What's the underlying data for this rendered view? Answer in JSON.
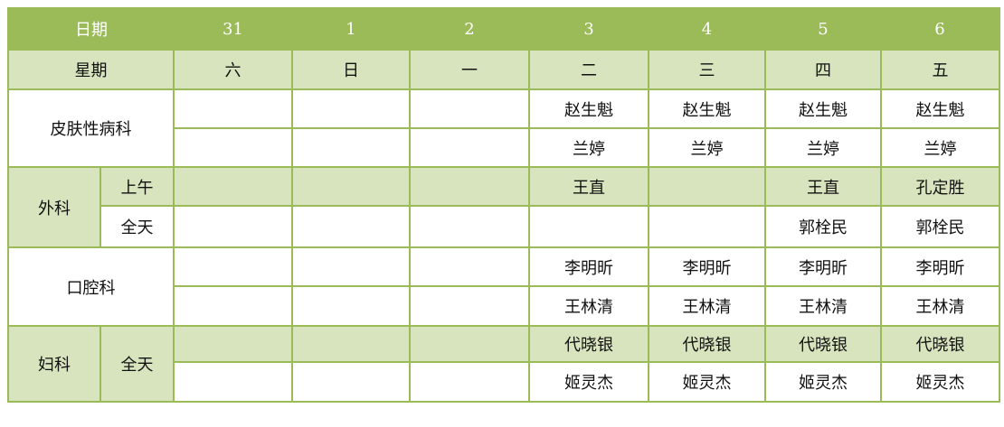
{
  "header": {
    "date_label": "日期",
    "weekday_label": "星期",
    "dates": [
      "31",
      "1",
      "2",
      "3",
      "4",
      "5",
      "6"
    ],
    "weekdays": [
      "六",
      "日",
      "一",
      "二",
      "三",
      "四",
      "五"
    ]
  },
  "departments": [
    {
      "name": "皮肤性病科",
      "rows": [
        {
          "shift": "",
          "shaded": false,
          "cells": [
            "",
            "",
            "",
            "赵生魁",
            "赵生魁",
            "赵生魁",
            "赵生魁"
          ]
        },
        {
          "shift": "",
          "shaded": false,
          "cells": [
            "",
            "",
            "",
            "兰婷",
            "兰婷",
            "兰婷",
            "兰婷"
          ]
        }
      ]
    },
    {
      "name": "外科",
      "shaded": true,
      "rows": [
        {
          "shift": "上午",
          "shaded": true,
          "cells": [
            "",
            "",
            "",
            "王直",
            "",
            "王直",
            "孔定胜"
          ]
        },
        {
          "shift": "全天",
          "shaded": false,
          "cells": [
            "",
            "",
            "",
            "",
            "",
            "郭栓民",
            "郭栓民"
          ]
        }
      ]
    },
    {
      "name": "口腔科",
      "rows": [
        {
          "shift": "",
          "shaded": false,
          "cells": [
            "",
            "",
            "",
            "李明昕",
            "李明昕",
            "李明昕",
            "李明昕"
          ]
        },
        {
          "shift": "",
          "shaded": false,
          "cells": [
            "",
            "",
            "",
            "王林清",
            "王林清",
            "王林清",
            "王林清"
          ]
        }
      ]
    },
    {
      "name": "妇科",
      "shaded": true,
      "shift_span": "全天",
      "rows": [
        {
          "shift": "全天",
          "shaded": true,
          "cells": [
            "",
            "",
            "",
            "代晓银",
            "代晓银",
            "代晓银",
            "代晓银"
          ]
        },
        {
          "shift": "",
          "shaded": false,
          "cells": [
            "",
            "",
            "",
            "姬灵杰",
            "姬灵杰",
            "姬灵杰",
            "姬灵杰"
          ]
        }
      ]
    }
  ],
  "colors": {
    "header": "#9BBB59",
    "shade": "#D7E4BD",
    "border": "#9BBB59"
  }
}
